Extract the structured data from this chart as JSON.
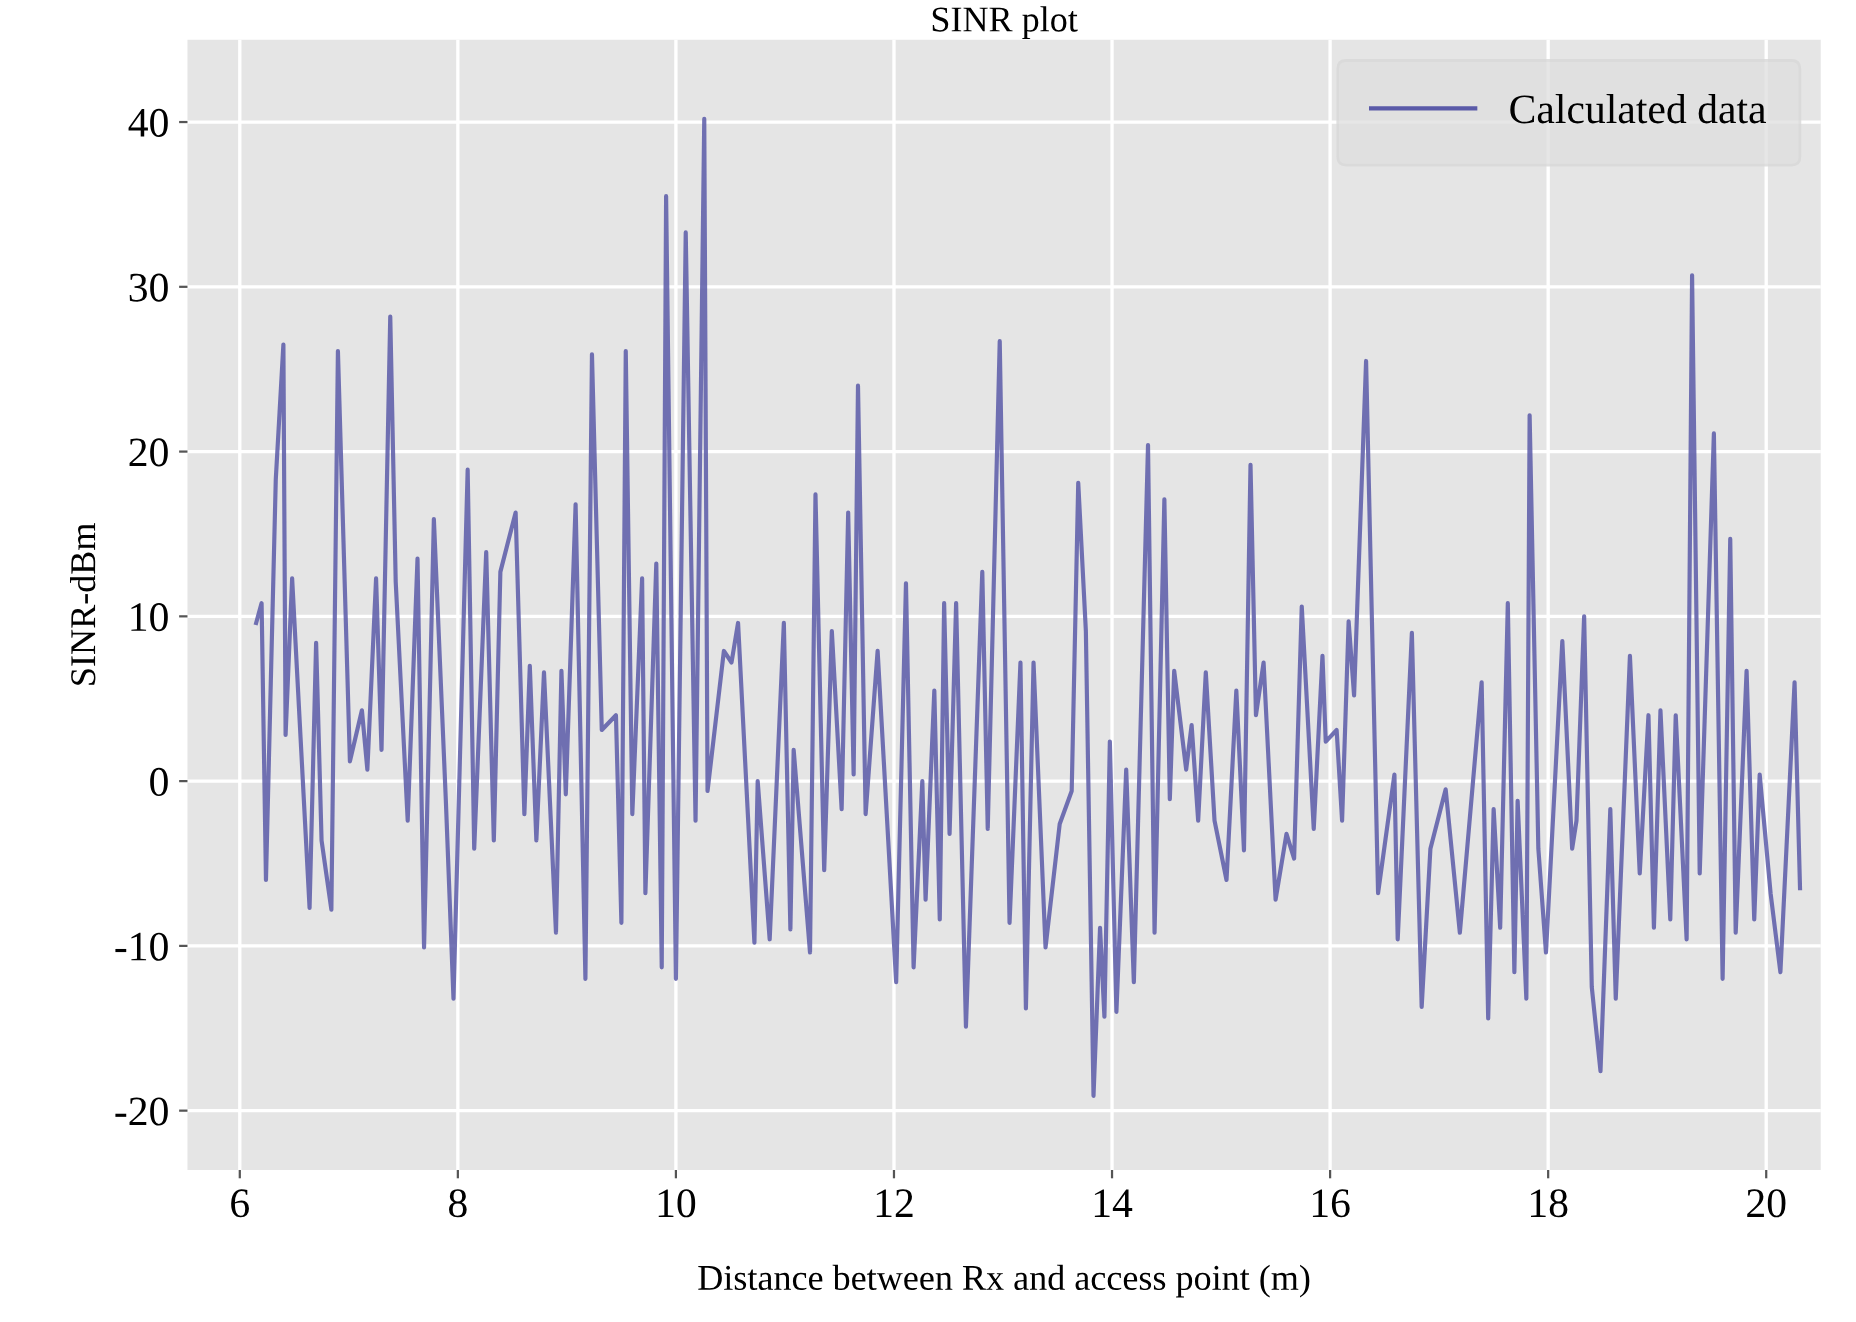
{
  "chart_data": {
    "type": "line",
    "title": "SINR plot",
    "xlabel": "Distance between Rx and access point (m)",
    "ylabel": "SINR-dBm",
    "xlim": [
      5.52,
      20.5
    ],
    "xticks": [
      6,
      8,
      10,
      12,
      14,
      16,
      18,
      20
    ],
    "ylim": [
      -23.6,
      45
    ],
    "yticks": [
      -20,
      -10,
      0,
      10,
      20,
      30,
      40
    ],
    "grid": true,
    "legend": "top right",
    "line_style": "solid",
    "marker": "none",
    "series": [
      {
        "name": "Calculated data",
        "color": "#5a5aa8",
        "x": [
          6.15,
          6.2,
          6.24,
          6.33,
          6.4,
          6.42,
          6.48,
          6.64,
          6.7,
          6.75,
          6.84,
          6.9,
          7.01,
          7.12,
          7.17,
          7.25,
          7.3,
          7.38,
          7.43,
          7.54,
          7.63,
          7.69,
          7.78,
          7.89,
          7.96,
          8.09,
          8.15,
          8.26,
          8.33,
          8.39,
          8.53,
          8.61,
          8.66,
          8.72,
          8.79,
          8.9,
          8.95,
          8.99,
          9.08,
          9.17,
          9.23,
          9.32,
          9.45,
          9.5,
          9.54,
          9.6,
          9.69,
          9.72,
          9.82,
          9.87,
          9.91,
          10.0,
          10.09,
          10.18,
          10.26,
          10.29,
          10.44,
          10.51,
          10.57,
          10.72,
          10.75,
          10.86,
          10.99,
          11.05,
          11.08,
          11.23,
          11.28,
          11.36,
          11.43,
          11.52,
          11.58,
          11.63,
          11.67,
          11.74,
          11.85,
          12.02,
          12.11,
          12.18,
          12.26,
          12.29,
          12.37,
          12.42,
          12.46,
          12.51,
          12.57,
          12.66,
          12.81,
          12.86,
          12.97,
          13.06,
          13.16,
          13.21,
          13.28,
          13.39,
          13.52,
          13.63,
          13.69,
          13.76,
          13.83,
          13.89,
          13.93,
          13.98,
          14.04,
          14.13,
          14.2,
          14.33,
          14.39,
          14.48,
          14.53,
          14.57,
          14.68,
          14.73,
          14.79,
          14.86,
          14.94,
          15.05,
          15.14,
          15.21,
          15.27,
          15.32,
          15.39,
          15.5,
          15.6,
          15.67,
          15.74,
          15.85,
          15.93,
          15.96,
          16.06,
          16.11,
          16.17,
          16.22,
          16.33,
          16.44,
          16.59,
          16.62,
          16.75,
          16.84,
          16.92,
          17.06,
          17.19,
          17.39,
          17.45,
          17.5,
          17.56,
          17.63,
          17.69,
          17.72,
          17.8,
          17.83,
          17.91,
          17.98,
          18.13,
          18.22,
          18.26,
          18.33,
          18.4,
          18.48,
          18.57,
          18.62,
          18.75,
          18.84,
          18.92,
          18.97,
          19.03,
          19.12,
          19.17,
          19.27,
          19.32,
          19.39,
          19.52,
          19.6,
          19.67,
          19.72,
          19.82,
          19.89,
          19.94,
          20.04,
          20.13,
          20.26,
          20.31
        ],
        "values": [
          9.6,
          10.8,
          -6.0,
          18.3,
          26.5,
          2.8,
          12.3,
          -7.7,
          8.4,
          -3.6,
          -7.8,
          26.1,
          1.2,
          4.3,
          0.7,
          12.3,
          1.9,
          28.2,
          12.1,
          -2.4,
          13.5,
          -10.1,
          15.9,
          -1.2,
          -13.2,
          18.9,
          -4.1,
          13.9,
          -3.6,
          12.7,
          16.3,
          -2.0,
          7.0,
          -3.6,
          6.6,
          -9.2,
          6.7,
          -0.8,
          16.8,
          -12.0,
          25.9,
          3.1,
          4.0,
          -8.6,
          26.1,
          -2.0,
          12.3,
          -6.8,
          13.2,
          -11.3,
          35.5,
          -12.0,
          33.3,
          -2.4,
          40.2,
          -0.6,
          7.9,
          7.2,
          9.6,
          -9.8,
          0.0,
          -9.6,
          9.6,
          -9.0,
          1.9,
          -10.4,
          17.4,
          -5.4,
          9.1,
          -1.7,
          16.3,
          0.4,
          24.0,
          -2.0,
          7.9,
          -12.2,
          12.0,
          -11.3,
          0.0,
          -7.2,
          5.5,
          -8.4,
          10.8,
          -3.2,
          10.8,
          -14.9,
          12.7,
          -2.9,
          26.7,
          -8.6,
          7.2,
          -13.8,
          7.2,
          -10.1,
          -2.6,
          -0.6,
          18.1,
          9.1,
          -19.1,
          -8.9,
          -14.3,
          2.4,
          -14.0,
          0.7,
          -12.2,
          20.4,
          -9.2,
          17.1,
          -1.1,
          6.7,
          0.7,
          3.4,
          -2.4,
          6.6,
          -2.4,
          -6.0,
          5.5,
          -4.2,
          19.2,
          4.0,
          7.2,
          -7.2,
          -3.2,
          -4.7,
          10.6,
          -2.9,
          7.6,
          2.4,
          3.1,
          -2.4,
          9.7,
          5.2,
          25.5,
          -6.8,
          0.4,
          -9.6,
          9.0,
          -13.7,
          -4.1,
          -0.5,
          -9.2,
          6.0,
          -14.4,
          -1.7,
          -8.9,
          10.8,
          -11.6,
          -1.2,
          -13.2,
          22.2,
          -4.1,
          -10.4,
          8.5,
          -4.1,
          -2.4,
          10.0,
          -12.5,
          -17.6,
          -1.7,
          -13.2,
          7.6,
          -5.6,
          4.0,
          -8.9,
          4.3,
          -8.4,
          4.0,
          -9.6,
          30.7,
          -5.6,
          21.1,
          -12.0,
          14.7,
          -9.2,
          6.7,
          -8.4,
          0.4,
          -6.8,
          -11.6,
          6.0,
          -6.5
        ]
      }
    ]
  }
}
